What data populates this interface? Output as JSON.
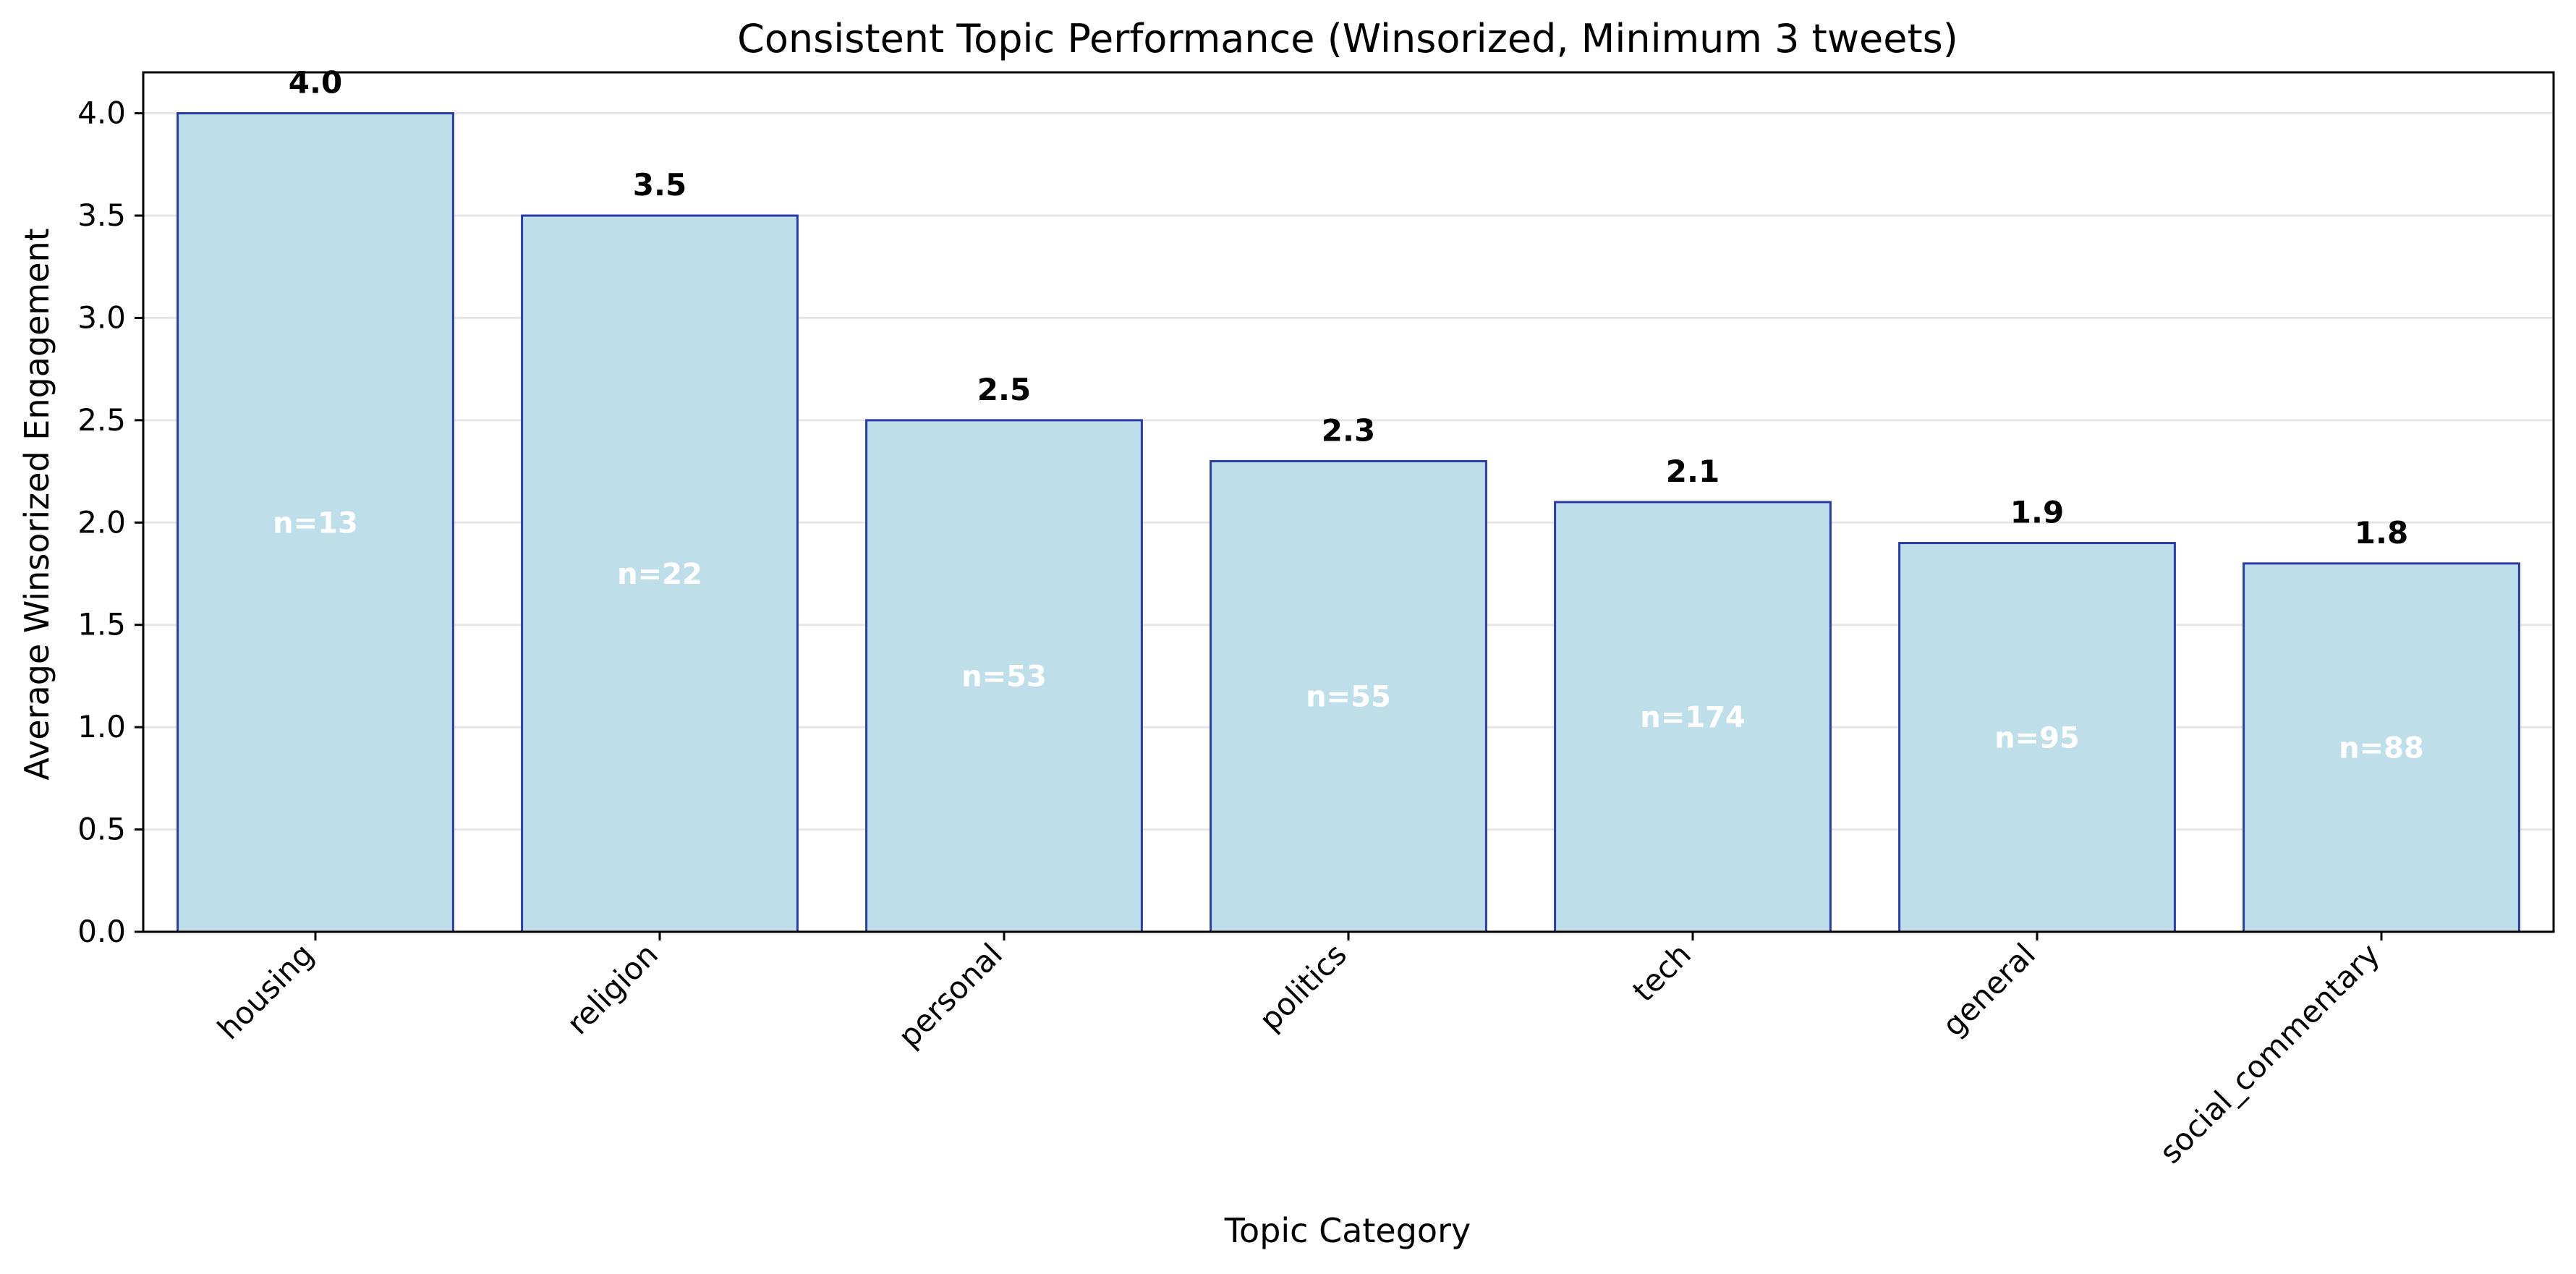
{
  "chart_data": {
    "type": "bar",
    "title": "Consistent Topic Performance (Winsorized, Minimum 3 tweets)",
    "xlabel": "Topic Category",
    "ylabel": "Average Winsorized Engagement",
    "categories": [
      "housing",
      "religion",
      "personal",
      "politics",
      "tech",
      "general",
      "social_commentary"
    ],
    "values": [
      4.0,
      3.5,
      2.5,
      2.3,
      2.1,
      1.9,
      1.8
    ],
    "value_labels": [
      "4.0",
      "3.5",
      "2.5",
      "2.3",
      "2.1",
      "1.9",
      "1.8"
    ],
    "count_labels": [
      "n=13",
      "n=22",
      "n=53",
      "n=55",
      "n=174",
      "n=95",
      "n=88"
    ],
    "ylim": [
      0,
      4.2
    ],
    "yticks": [
      0.0,
      0.5,
      1.0,
      1.5,
      2.0,
      2.5,
      3.0,
      3.5,
      4.0
    ],
    "ytick_labels": [
      "0.0",
      "0.5",
      "1.0",
      "1.5",
      "2.0",
      "2.5",
      "3.0",
      "3.5",
      "4.0"
    ],
    "grid": "horizontal",
    "colors": {
      "bar_fill": "#BEDFEA",
      "bar_edge": "#2A3BA8",
      "grid": "#E6E6E6",
      "axis": "#000000",
      "value_text": "#000000",
      "count_text": "#FFFFFF"
    }
  }
}
